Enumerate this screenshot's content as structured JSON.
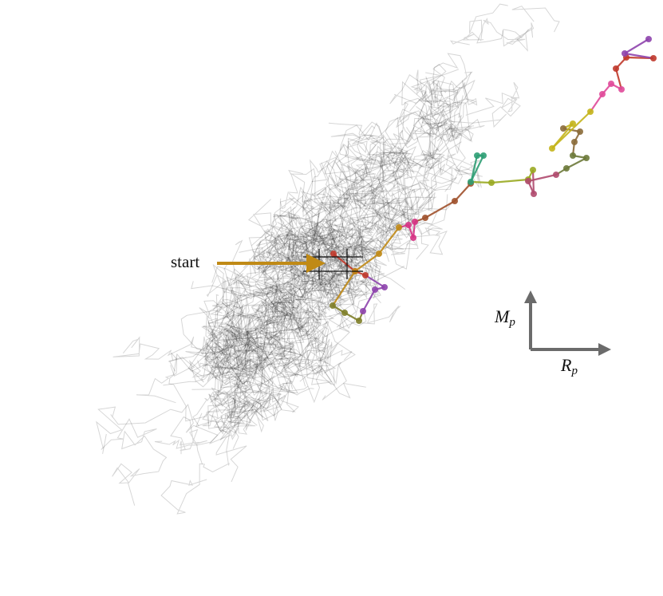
{
  "annotation": {
    "start": "start"
  },
  "axes": {
    "vertical": {
      "symbol": "M",
      "subscript": "p"
    },
    "horizontal": {
      "symbol": "R",
      "subscript": "p"
    }
  }
}
